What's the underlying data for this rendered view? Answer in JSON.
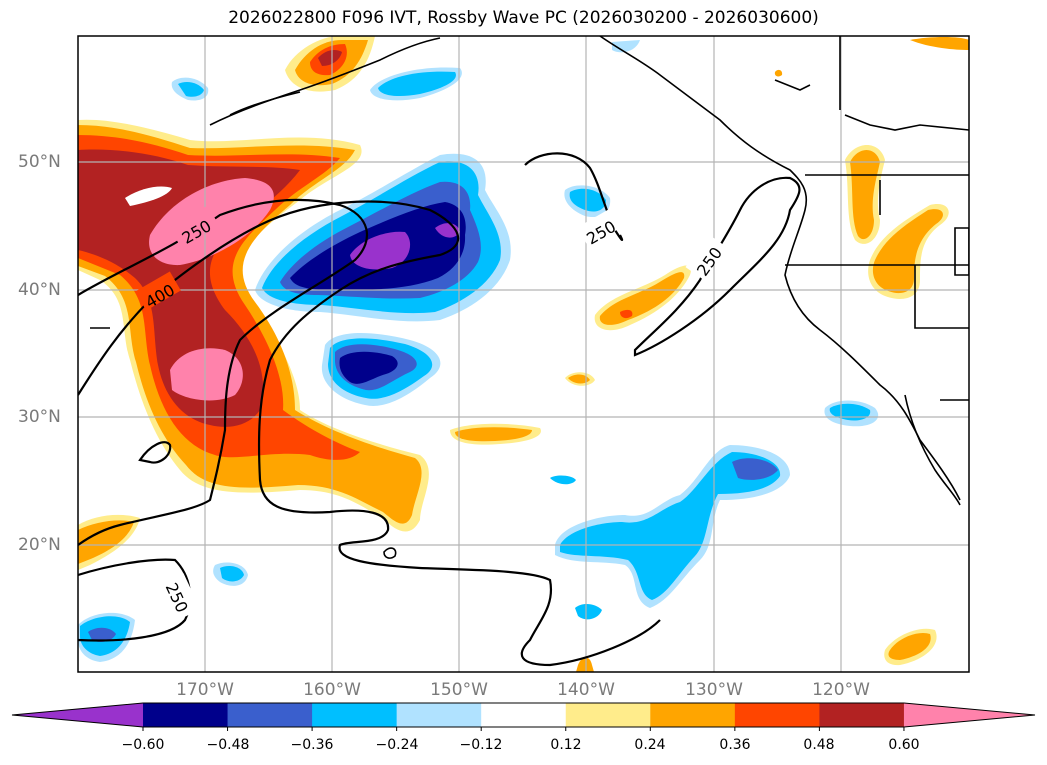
{
  "title": "2026022800 F096 IVT, Rossby Wave PC (2026030200 - 2026030600)",
  "lat_labels": [
    "50°N",
    "40°N",
    "30°N",
    "20°N"
  ],
  "lon_labels": [
    "170°W",
    "160°W",
    "150°W",
    "140°W",
    "130°W",
    "120°W"
  ],
  "contour_labels": [
    "250",
    "400",
    "250",
    "250",
    "250"
  ],
  "colorbar": {
    "ticks": [
      "−0.60",
      "−0.48",
      "−0.36",
      "−0.24",
      "−0.12",
      "0.12",
      "0.24",
      "0.36",
      "0.48",
      "0.60"
    ],
    "colors": [
      "#9932cc",
      "#00008b",
      "#3a5fcd",
      "#00bfff",
      "#b0e2ff",
      "#ffffff",
      "#ffec8b",
      "#ffa500",
      "#ff4500",
      "#b22222",
      "#ff82ab"
    ]
  },
  "colors": {
    "neg_strong": "#9932cc",
    "neg_dark": "#00008b",
    "neg_mid": "#3a5fcd",
    "neg_light": "#00bfff",
    "neg_pale": "#b0e2ff",
    "pos_pale": "#ffec8b",
    "pos_light": "#ffa500",
    "pos_mid": "#ff4500",
    "pos_dark": "#b22222",
    "pos_strong": "#ff82ab"
  }
}
